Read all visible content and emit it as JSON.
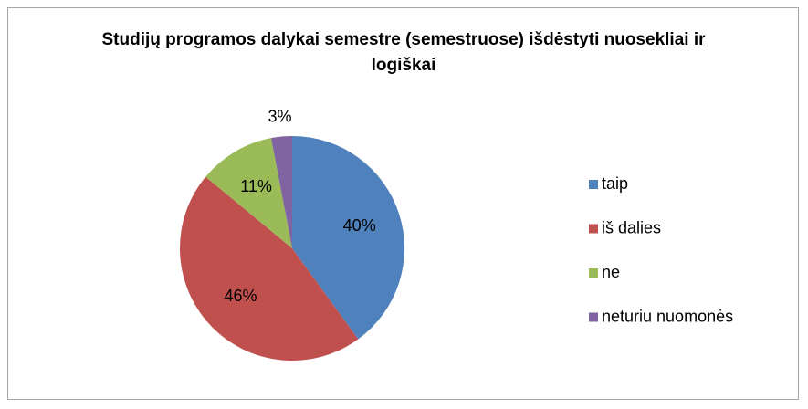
{
  "chart_data": {
    "type": "pie",
    "title": "Studijų programos dalykai semestre (semestruose) išdėstyti nuosekliai ir logiškai",
    "categories": [
      "taip",
      "iš dalies",
      "ne",
      "neturiu nuomonės"
    ],
    "values": [
      40,
      46,
      11,
      3
    ],
    "value_labels": [
      "40%",
      "46%",
      "11%",
      "3%"
    ],
    "colors": [
      "#4f81bd",
      "#c0504d",
      "#9bbb59",
      "#8064a2"
    ],
    "legend": "right"
  }
}
